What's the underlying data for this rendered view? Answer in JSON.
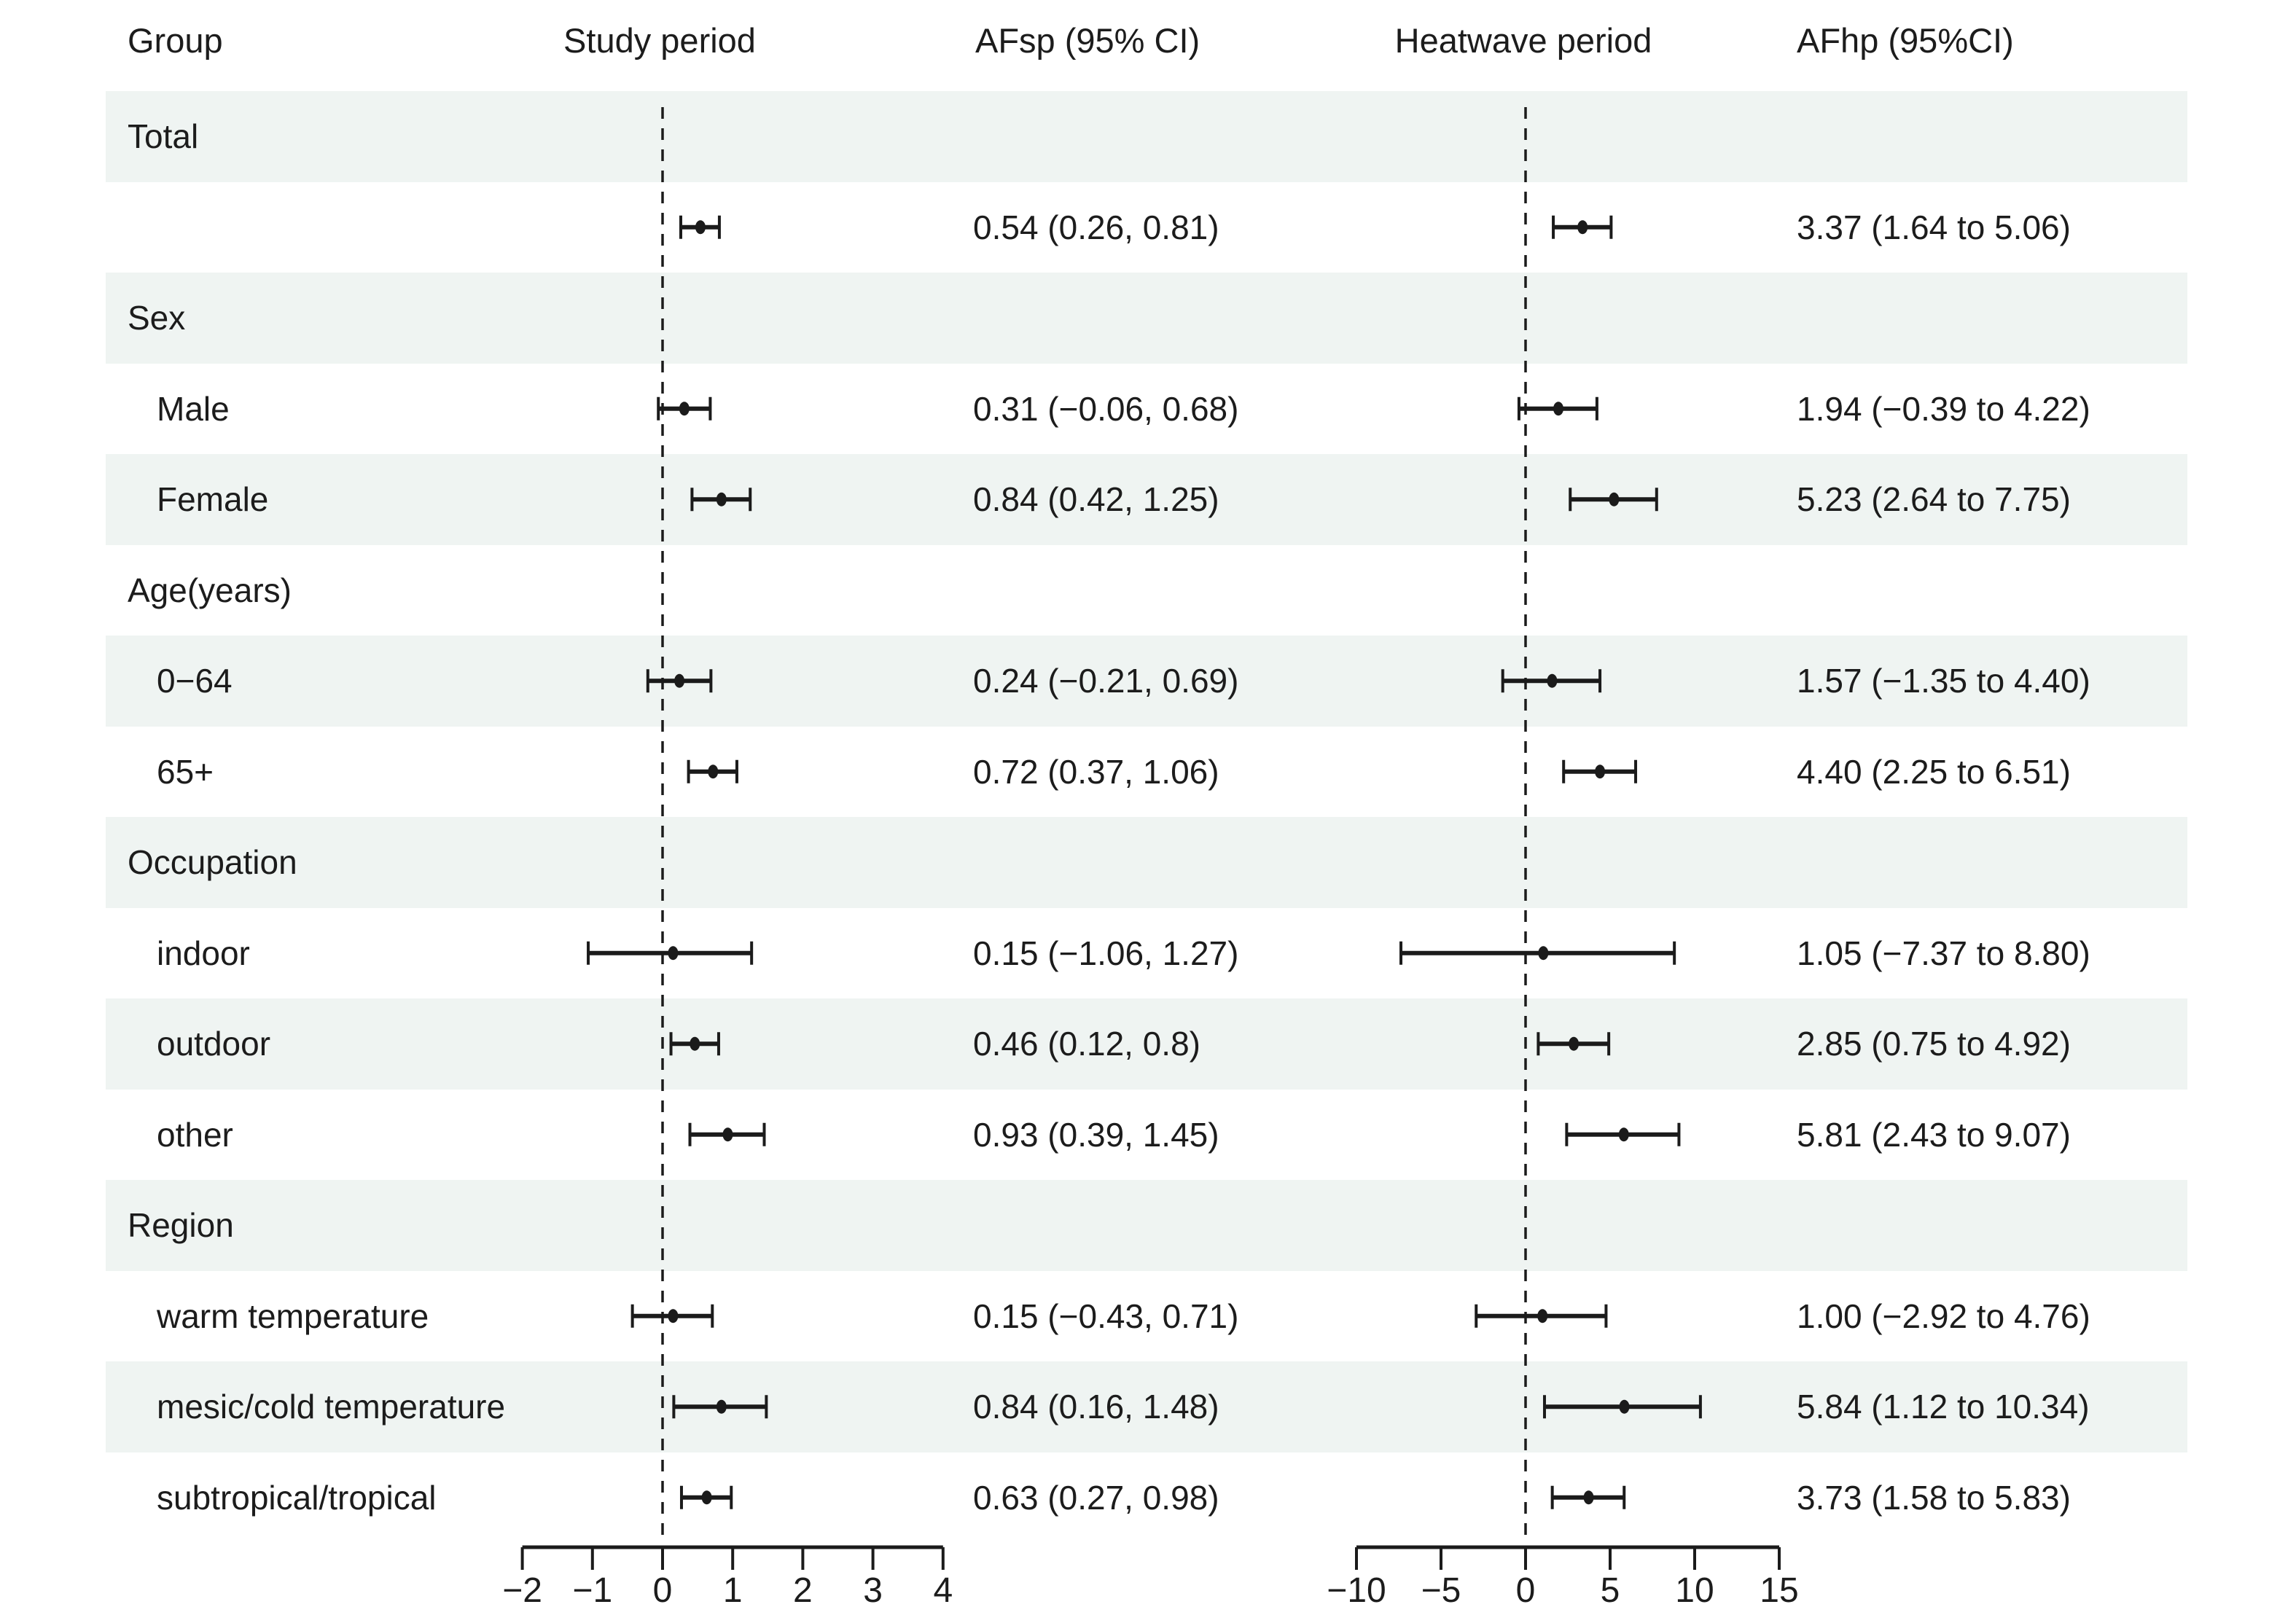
{
  "headers": {
    "group": "Group",
    "study_period": "Study period",
    "afsp": "AFsp (95% CI)",
    "heatwave_period": "Heatwave period",
    "afhp": "AFhp (95%CI)"
  },
  "rows": [
    {
      "label": "Total",
      "kind": "category",
      "afsp": "",
      "afhp": ""
    },
    {
      "label": "",
      "kind": "data",
      "afsp": "0.54 (0.26, 0.81)",
      "afhp": "3.37 (1.64 to 5.06)"
    },
    {
      "label": "Sex",
      "kind": "category",
      "afsp": "",
      "afhp": ""
    },
    {
      "label": "Male",
      "kind": "data",
      "afsp": "0.31 (−0.06, 0.68)",
      "afhp": "1.94 (−0.39 to 4.22)"
    },
    {
      "label": "Female",
      "kind": "data",
      "afsp": "0.84 (0.42, 1.25)",
      "afhp": "5.23 (2.64 to 7.75)"
    },
    {
      "label": "Age(years)",
      "kind": "category",
      "afsp": "",
      "afhp": ""
    },
    {
      "label": "0−64",
      "kind": "data",
      "afsp": "0.24 (−0.21, 0.69)",
      "afhp": "1.57 (−1.35 to 4.40)"
    },
    {
      "label": "65+",
      "kind": "data",
      "afsp": "0.72 (0.37, 1.06)",
      "afhp": "4.40 (2.25 to 6.51)"
    },
    {
      "label": "Occupation",
      "kind": "category",
      "afsp": "",
      "afhp": ""
    },
    {
      "label": "indoor",
      "kind": "data",
      "afsp": "0.15 (−1.06, 1.27)",
      "afhp": "1.05 (−7.37 to 8.80)"
    },
    {
      "label": "outdoor",
      "kind": "data",
      "afsp": "0.46 (0.12, 0.8)",
      "afhp": "2.85 (0.75 to 4.92)"
    },
    {
      "label": "other",
      "kind": "data",
      "afsp": "0.93 (0.39, 1.45)",
      "afhp": "5.81 (2.43 to 9.07)"
    },
    {
      "label": "Region",
      "kind": "category",
      "afsp": "",
      "afhp": ""
    },
    {
      "label": "warm temperature",
      "kind": "data",
      "afsp": "0.15 (−0.43, 0.71)",
      "afhp": "1.00 (−2.92 to 4.76)"
    },
    {
      "label": "mesic/cold temperature",
      "kind": "data",
      "afsp": "0.84 (0.16, 1.48)",
      "afhp": "5.84 (1.12 to 10.34)"
    },
    {
      "label": "subtropical/tropical",
      "kind": "data",
      "afsp": "0.63 (0.27, 0.98)",
      "afhp": "3.73 (1.58 to 5.83)"
    }
  ],
  "colors": {
    "band": "#eff4f2",
    "ink": "#1b1b1b",
    "text": "#1c1c1c",
    "background": "#ffffff"
  },
  "chart_data": [
    {
      "type": "scatter",
      "subtype": "forest-panel",
      "title": "Study period",
      "xlabel": "",
      "xlim": [
        -2,
        4
      ],
      "xticks": [
        -2,
        -1,
        0,
        1,
        2,
        3,
        4
      ],
      "refline": 0,
      "grid": false,
      "points": [
        {
          "row": 1,
          "group": "Total",
          "est": 0.54,
          "lo": 0.26,
          "hi": 0.81
        },
        {
          "row": 3,
          "group": "Male",
          "est": 0.31,
          "lo": -0.06,
          "hi": 0.68
        },
        {
          "row": 4,
          "group": "Female",
          "est": 0.84,
          "lo": 0.42,
          "hi": 1.25
        },
        {
          "row": 6,
          "group": "0−64",
          "est": 0.24,
          "lo": -0.21,
          "hi": 0.69
        },
        {
          "row": 7,
          "group": "65+",
          "est": 0.72,
          "lo": 0.37,
          "hi": 1.06
        },
        {
          "row": 9,
          "group": "indoor",
          "est": 0.15,
          "lo": -1.06,
          "hi": 1.27
        },
        {
          "row": 10,
          "group": "outdoor",
          "est": 0.46,
          "lo": 0.12,
          "hi": 0.8
        },
        {
          "row": 11,
          "group": "other",
          "est": 0.93,
          "lo": 0.39,
          "hi": 1.45
        },
        {
          "row": 13,
          "group": "warm temperature",
          "est": 0.15,
          "lo": -0.43,
          "hi": 0.71
        },
        {
          "row": 14,
          "group": "mesic/cold temperature",
          "est": 0.84,
          "lo": 0.16,
          "hi": 1.48
        },
        {
          "row": 15,
          "group": "subtropical/tropical",
          "est": 0.63,
          "lo": 0.27,
          "hi": 0.98
        }
      ]
    },
    {
      "type": "scatter",
      "subtype": "forest-panel",
      "title": "Heatwave period",
      "xlabel": "",
      "xlim": [
        -10,
        15
      ],
      "xticks": [
        -10,
        -5,
        0,
        5,
        10,
        15
      ],
      "refline": 0,
      "grid": false,
      "points": [
        {
          "row": 1,
          "group": "Total",
          "est": 3.37,
          "lo": 1.64,
          "hi": 5.06
        },
        {
          "row": 3,
          "group": "Male",
          "est": 1.94,
          "lo": -0.39,
          "hi": 4.22
        },
        {
          "row": 4,
          "group": "Female",
          "est": 5.23,
          "lo": 2.64,
          "hi": 7.75
        },
        {
          "row": 6,
          "group": "0−64",
          "est": 1.57,
          "lo": -1.35,
          "hi": 4.4
        },
        {
          "row": 7,
          "group": "65+",
          "est": 4.4,
          "lo": 2.25,
          "hi": 6.51
        },
        {
          "row": 9,
          "group": "indoor",
          "est": 1.05,
          "lo": -7.37,
          "hi": 8.8
        },
        {
          "row": 10,
          "group": "outdoor",
          "est": 2.85,
          "lo": 0.75,
          "hi": 4.92
        },
        {
          "row": 11,
          "group": "other",
          "est": 5.81,
          "lo": 2.43,
          "hi": 9.07
        },
        {
          "row": 13,
          "group": "warm temperature",
          "est": 1.0,
          "lo": -2.92,
          "hi": 4.76
        },
        {
          "row": 14,
          "group": "mesic/cold temperature",
          "est": 5.84,
          "lo": 1.12,
          "hi": 10.34
        },
        {
          "row": 15,
          "group": "subtropical/tropical",
          "est": 3.73,
          "lo": 1.58,
          "hi": 5.83
        }
      ]
    }
  ]
}
